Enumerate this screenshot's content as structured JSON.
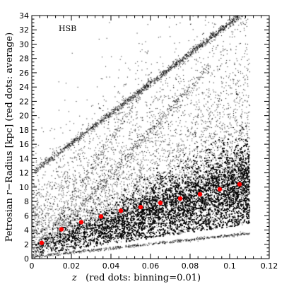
{
  "chart_data": {
    "type": "scatter",
    "annotation": "HSB",
    "xlabel_parts": [
      "z",
      "   (red dots: binning=0.01)"
    ],
    "ylabel_parts": [
      "Petrosian ",
      "r",
      "−Radius [kpc] (red dots: average)"
    ],
    "xlim": [
      0,
      0.12
    ],
    "ylim": [
      0,
      34
    ],
    "x_ticks": [
      0,
      0.02,
      0.04,
      0.06,
      0.08,
      0.1,
      0.12
    ],
    "x_tick_labels": [
      "0",
      "0.02",
      "0.04",
      "0.06",
      "0.08",
      "0.1",
      "0.12"
    ],
    "y_ticks": [
      0,
      2,
      4,
      6,
      8,
      10,
      12,
      14,
      16,
      18,
      20,
      22,
      24,
      26,
      28,
      30,
      32,
      34
    ],
    "y_tick_labels": [
      "0",
      "2",
      "4",
      "6",
      "8",
      "10",
      "12",
      "14",
      "16",
      "18",
      "20",
      "22",
      "24",
      "26",
      "28",
      "30",
      "32",
      "34"
    ],
    "grid": false,
    "colors": {
      "points": "#000000",
      "averages": "#ff0000"
    },
    "averages": {
      "x": [
        0.005,
        0.015,
        0.025,
        0.035,
        0.045,
        0.055,
        0.065,
        0.075,
        0.085,
        0.095,
        0.105
      ],
      "y": [
        2.2,
        4.1,
        5.1,
        5.9,
        6.7,
        7.2,
        7.8,
        8.4,
        9.0,
        9.7,
        10.4
      ]
    }
  }
}
